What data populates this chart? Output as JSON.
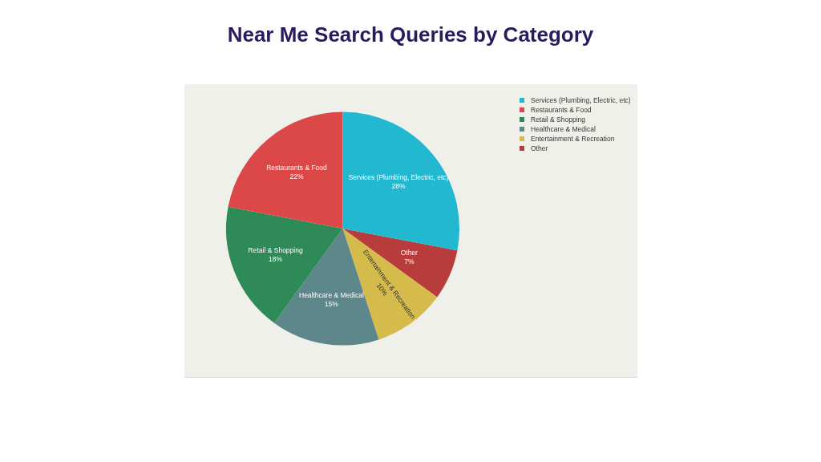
{
  "chart_data": {
    "type": "pie",
    "title": "Near Me Search Queries by Category",
    "categories": [
      "Services (Plumbing, Electric, etc)",
      "Restaurants & Food",
      "Retail & Shopping",
      "Healthcare & Medical",
      "Entertainment & Recreation",
      "Other"
    ],
    "values": [
      28,
      22,
      18,
      15,
      10,
      7
    ],
    "value_labels": [
      "28%",
      "22%",
      "18%",
      "15%",
      "10%",
      "7%"
    ],
    "colors": [
      "#22b8cf",
      "#dc4848",
      "#2e8b57",
      "#5e878c",
      "#d4bb4c",
      "#b83c3c"
    ],
    "legend": "top right"
  }
}
